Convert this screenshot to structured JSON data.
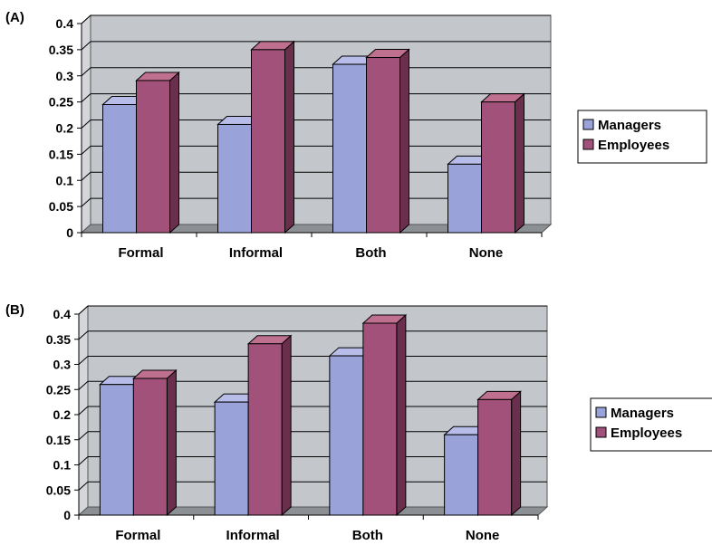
{
  "chart_data": [
    {
      "type": "bar",
      "panel_label": "(A)",
      "categories": [
        "Formal",
        "Informal",
        "Both",
        "None"
      ],
      "series": [
        {
          "name": "Managers",
          "values": [
            0.245,
            0.207,
            0.322,
            0.131
          ]
        },
        {
          "name": "Employees",
          "values": [
            0.291,
            0.35,
            0.335,
            0.25
          ]
        }
      ],
      "ylim": [
        0,
        0.4
      ],
      "yticks": [
        "0",
        "0.05",
        "0.1",
        "0.15",
        "0.2",
        "0.25",
        "0.3",
        "0.35",
        "0.4"
      ],
      "grid": true,
      "three_d": true,
      "legend_position": "right"
    },
    {
      "type": "bar",
      "panel_label": "(B)",
      "categories": [
        "Formal",
        "Informal",
        "Both",
        "None"
      ],
      "series": [
        {
          "name": "Managers",
          "values": [
            0.26,
            0.225,
            0.317,
            0.16
          ]
        },
        {
          "name": "Employees",
          "values": [
            0.272,
            0.341,
            0.382,
            0.23
          ]
        }
      ],
      "ylim": [
        0,
        0.4
      ],
      "yticks": [
        "0",
        "0.05",
        "0.1",
        "0.15",
        "0.2",
        "0.25",
        "0.3",
        "0.35",
        "0.4"
      ],
      "grid": true,
      "three_d": true,
      "legend_position": "right"
    }
  ],
  "colors": {
    "managers_front": "#9aa3d9",
    "managers_top": "#b7bde8",
    "managers_side": "#5d6599",
    "employees_front": "#a2527a",
    "employees_top": "#c0708f",
    "employees_side": "#6a2f4d",
    "wall": "#c3c6cb",
    "floor": "#8c8f94",
    "grid": "#000000"
  }
}
